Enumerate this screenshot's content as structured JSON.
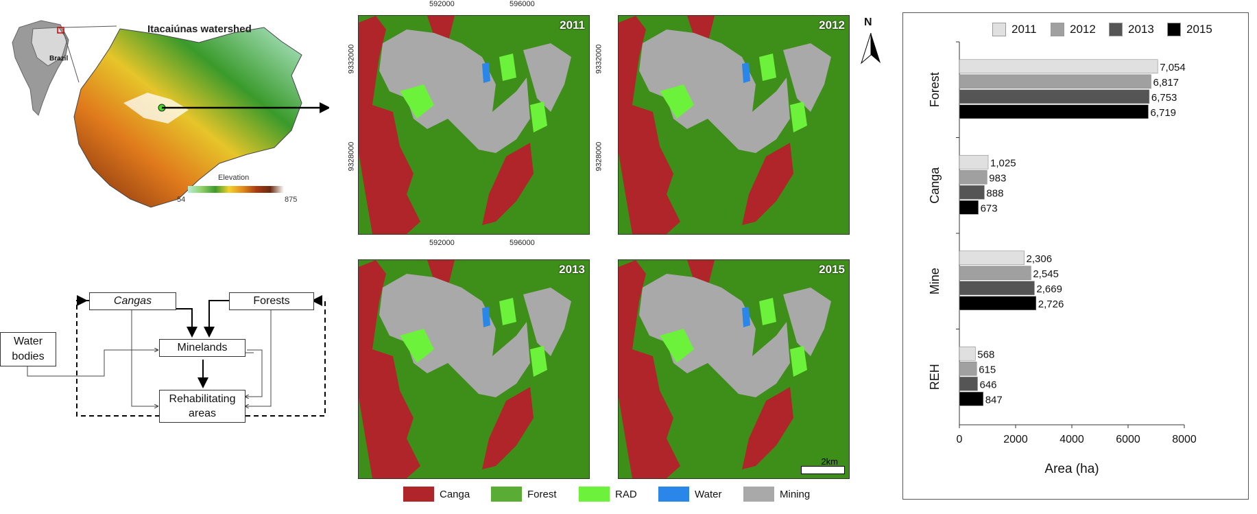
{
  "location_map": {
    "title": "Itacaiúnas watershed",
    "inset_label": "Brazil",
    "elevation_label": "Elevation",
    "elevation_min": "54",
    "elevation_max": "875"
  },
  "flow_diagram": {
    "nodes": {
      "cangas": "Cangas",
      "forests": "Forests",
      "minelands": "Minelands",
      "water_line1": "Water",
      "water_line2": "bodies",
      "rehab_line1": "Rehabilitating",
      "rehab_line2": "areas"
    }
  },
  "maps": {
    "panels": [
      {
        "year": "2011"
      },
      {
        "year": "2012"
      },
      {
        "year": "2013"
      },
      {
        "year": "2015"
      }
    ],
    "x_coords": [
      "592000",
      "596000"
    ],
    "y_coords": [
      "9332000",
      "9328000"
    ],
    "north": "N",
    "scale_bar": "2km",
    "legend": [
      {
        "label": "Canga",
        "color": "#b0252a"
      },
      {
        "label": "Forest",
        "color": "#5aad34"
      },
      {
        "label": "RAD",
        "color": "#6cf23a"
      },
      {
        "label": "Water",
        "color": "#2a86e8"
      },
      {
        "label": "Mining",
        "color": "#a9a9a9"
      }
    ]
  },
  "chart_data": {
    "type": "bar",
    "orientation": "horizontal",
    "categories": [
      "Forest",
      "Canga",
      "Mine",
      "REH"
    ],
    "series": [
      {
        "name": "2011",
        "color": "#e0e0e0",
        "values": [
          7054,
          1025,
          2306,
          568
        ]
      },
      {
        "name": "2012",
        "color": "#a0a0a0",
        "values": [
          6817,
          983,
          2545,
          615
        ]
      },
      {
        "name": "2013",
        "color": "#555555",
        "values": [
          6753,
          888,
          2669,
          646
        ]
      },
      {
        "name": "2015",
        "color": "#000000",
        "values": [
          6719,
          673,
          2726,
          847
        ]
      }
    ],
    "value_labels": [
      [
        "7,054",
        "1,025",
        "2,306",
        "568"
      ],
      [
        "6,817",
        "983",
        "2,545",
        "615"
      ],
      [
        "6,753",
        "888",
        "2,669",
        "646"
      ],
      [
        "6,719",
        "673",
        "2,726",
        "847"
      ]
    ],
    "xlabel": "Area (ha)",
    "xlim": [
      0,
      8000
    ],
    "xticks": [
      "0",
      "2000",
      "4000",
      "6000",
      "8000"
    ],
    "legend_position": "top",
    "grid": false
  }
}
